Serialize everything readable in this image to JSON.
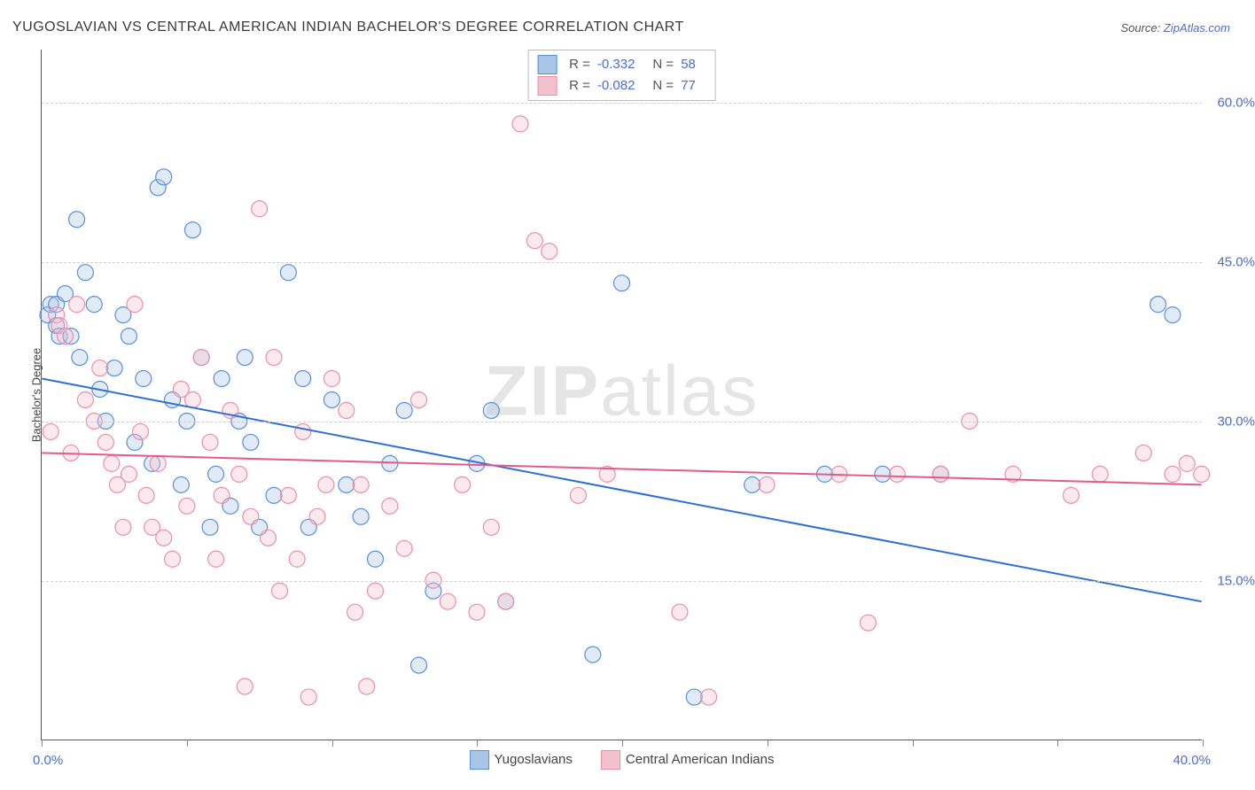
{
  "title": "YUGOSLAVIAN VS CENTRAL AMERICAN INDIAN BACHELOR'S DEGREE CORRELATION CHART",
  "source_label": "Source: ",
  "source_name": "ZipAtlas.com",
  "ylabel": "Bachelor's Degree",
  "watermark_bold": "ZIP",
  "watermark_rest": "atlas",
  "chart": {
    "type": "scatter",
    "xlim": [
      0,
      40
    ],
    "ylim": [
      0,
      65
    ],
    "xtick_positions": [
      0,
      5,
      10,
      15,
      20,
      25,
      30,
      35,
      40
    ],
    "xaxis_label_left": "0.0%",
    "xaxis_label_right": "40.0%",
    "ytick_labels": [
      {
        "value": 15,
        "label": "15.0%"
      },
      {
        "value": 30,
        "label": "30.0%"
      },
      {
        "value": 45,
        "label": "45.0%"
      },
      {
        "value": 60,
        "label": "60.0%"
      }
    ],
    "grid_color": "#d0d0d0",
    "background_color": "#ffffff",
    "marker_radius": 9,
    "marker_stroke_width": 1.2,
    "marker_fill_opacity": 0.35,
    "line_width": 2,
    "series": [
      {
        "name": "Yugoslavians",
        "color_stroke": "#5b8fd6",
        "color_fill": "#a8c5e8",
        "line_color": "#2e6fd6",
        "legend_swatch_fill": "#a8c5e8",
        "legend_swatch_stroke": "#5b8fd6",
        "R": "-0.332",
        "N": "58",
        "regression": {
          "x1": 0,
          "y1": 34,
          "x2": 40,
          "y2": 13
        },
        "points": [
          [
            0.2,
            40
          ],
          [
            0.3,
            41
          ],
          [
            0.5,
            39
          ],
          [
            0.5,
            41
          ],
          [
            0.6,
            38
          ],
          [
            0.8,
            42
          ],
          [
            1.0,
            38
          ],
          [
            1.2,
            49
          ],
          [
            1.3,
            36
          ],
          [
            1.5,
            44
          ],
          [
            1.8,
            41
          ],
          [
            2.0,
            33
          ],
          [
            2.2,
            30
          ],
          [
            2.5,
            35
          ],
          [
            2.8,
            40
          ],
          [
            3.0,
            38
          ],
          [
            3.2,
            28
          ],
          [
            3.5,
            34
          ],
          [
            3.8,
            26
          ],
          [
            4.0,
            52
          ],
          [
            4.2,
            53
          ],
          [
            4.5,
            32
          ],
          [
            4.8,
            24
          ],
          [
            5.0,
            30
          ],
          [
            5.2,
            48
          ],
          [
            5.5,
            36
          ],
          [
            5.8,
            20
          ],
          [
            6.0,
            25
          ],
          [
            6.2,
            34
          ],
          [
            6.5,
            22
          ],
          [
            6.8,
            30
          ],
          [
            7.0,
            36
          ],
          [
            7.2,
            28
          ],
          [
            7.5,
            20
          ],
          [
            8.0,
            23
          ],
          [
            8.5,
            44
          ],
          [
            9.0,
            34
          ],
          [
            9.2,
            20
          ],
          [
            10.0,
            32
          ],
          [
            10.5,
            24
          ],
          [
            11.0,
            21
          ],
          [
            11.5,
            17
          ],
          [
            12.0,
            26
          ],
          [
            12.5,
            31
          ],
          [
            13.0,
            7
          ],
          [
            13.5,
            14
          ],
          [
            15.0,
            26
          ],
          [
            15.5,
            31
          ],
          [
            16.0,
            13
          ],
          [
            19.0,
            8
          ],
          [
            20.0,
            43
          ],
          [
            22.5,
            4
          ],
          [
            24.5,
            24
          ],
          [
            27.0,
            25
          ],
          [
            29.0,
            25
          ],
          [
            31.0,
            25
          ],
          [
            38.5,
            41
          ],
          [
            39.0,
            40
          ]
        ]
      },
      {
        "name": "Central American Indians",
        "color_stroke": "#e890a8",
        "color_fill": "#f5c0cd",
        "line_color": "#e35a8a",
        "legend_swatch_fill": "#f5c0cd",
        "legend_swatch_stroke": "#e890a8",
        "R": "-0.082",
        "N": "77",
        "regression": {
          "x1": 0,
          "y1": 27,
          "x2": 40,
          "y2": 24
        },
        "points": [
          [
            0.3,
            29
          ],
          [
            0.5,
            40
          ],
          [
            0.6,
            39
          ],
          [
            0.8,
            38
          ],
          [
            1.0,
            27
          ],
          [
            1.2,
            41
          ],
          [
            1.5,
            32
          ],
          [
            1.8,
            30
          ],
          [
            2.0,
            35
          ],
          [
            2.2,
            28
          ],
          [
            2.4,
            26
          ],
          [
            2.6,
            24
          ],
          [
            2.8,
            20
          ],
          [
            3.0,
            25
          ],
          [
            3.2,
            41
          ],
          [
            3.4,
            29
          ],
          [
            3.6,
            23
          ],
          [
            3.8,
            20
          ],
          [
            4.0,
            26
          ],
          [
            4.2,
            19
          ],
          [
            4.5,
            17
          ],
          [
            4.8,
            33
          ],
          [
            5.0,
            22
          ],
          [
            5.2,
            32
          ],
          [
            5.5,
            36
          ],
          [
            5.8,
            28
          ],
          [
            6.0,
            17
          ],
          [
            6.2,
            23
          ],
          [
            6.5,
            31
          ],
          [
            6.8,
            25
          ],
          [
            7.0,
            5
          ],
          [
            7.2,
            21
          ],
          [
            7.5,
            50
          ],
          [
            7.8,
            19
          ],
          [
            8.0,
            36
          ],
          [
            8.2,
            14
          ],
          [
            8.5,
            23
          ],
          [
            8.8,
            17
          ],
          [
            9.0,
            29
          ],
          [
            9.2,
            4
          ],
          [
            9.5,
            21
          ],
          [
            9.8,
            24
          ],
          [
            10.0,
            34
          ],
          [
            10.5,
            31
          ],
          [
            10.8,
            12
          ],
          [
            11.0,
            24
          ],
          [
            11.2,
            5
          ],
          [
            11.5,
            14
          ],
          [
            12.0,
            22
          ],
          [
            12.5,
            18
          ],
          [
            13.0,
            32
          ],
          [
            13.5,
            15
          ],
          [
            14.0,
            13
          ],
          [
            14.5,
            24
          ],
          [
            15.0,
            12
          ],
          [
            15.5,
            20
          ],
          [
            16.0,
            13
          ],
          [
            16.5,
            58
          ],
          [
            17.0,
            47
          ],
          [
            17.5,
            46
          ],
          [
            18.5,
            23
          ],
          [
            19.5,
            25
          ],
          [
            22.0,
            12
          ],
          [
            23.0,
            4
          ],
          [
            25.0,
            24
          ],
          [
            27.5,
            25
          ],
          [
            28.5,
            11
          ],
          [
            29.5,
            25
          ],
          [
            31.0,
            25
          ],
          [
            32.0,
            30
          ],
          [
            33.5,
            25
          ],
          [
            35.5,
            23
          ],
          [
            36.5,
            25
          ],
          [
            38.0,
            27
          ],
          [
            39.0,
            25
          ],
          [
            39.5,
            26
          ],
          [
            40.0,
            25
          ]
        ]
      }
    ]
  }
}
